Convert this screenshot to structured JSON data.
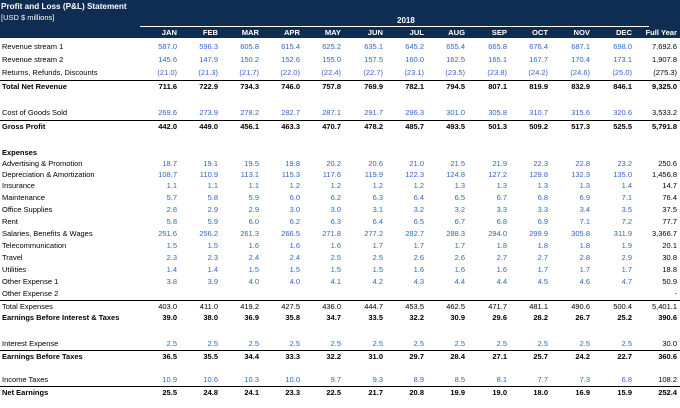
{
  "header": {
    "title": "Profit and Loss (P&L) Statement",
    "subtitle": "[USD $ millions]",
    "year": "2018",
    "months": [
      "JAN",
      "FEB",
      "MAR",
      "APR",
      "MAY",
      "JUN",
      "JUL",
      "AUG",
      "SEP",
      "OCT",
      "NOV",
      "DEC"
    ],
    "full_year_label": "Full Year"
  },
  "rows": [
    {
      "id": "rev1",
      "label": "Revenue stream 1",
      "values": [
        "587.0",
        "596.3",
        "605.8",
        "615.4",
        "625.2",
        "635.1",
        "645.2",
        "655.4",
        "665.8",
        "676.4",
        "687.1",
        "698.0"
      ],
      "fy": "7,692.6"
    },
    {
      "id": "rev2",
      "label": "Revenue stream 2",
      "values": [
        "145.6",
        "147.9",
        "150.2",
        "152.6",
        "155.0",
        "157.5",
        "160.0",
        "162.5",
        "165.1",
        "167.7",
        "170.4",
        "173.1"
      ],
      "fy": "1,907.8"
    },
    {
      "id": "returns",
      "label": "Returns, Refunds, Discounts",
      "values": [
        "(21.0)",
        "(21.3)",
        "(21.7)",
        "(22.0)",
        "(22.4)",
        "(22.7)",
        "(23.1)",
        "(23.5)",
        "(23.8)",
        "(24.2)",
        "(24.6)",
        "(25.0)"
      ],
      "fy": "(275.3)"
    },
    {
      "id": "total_net_revenue",
      "label": "Total Net Revenue",
      "values": [
        "711.6",
        "722.9",
        "734.3",
        "746.0",
        "757.8",
        "769.9",
        "782.1",
        "794.5",
        "807.1",
        "819.9",
        "832.9",
        "846.1"
      ],
      "fy": "9,325.0"
    },
    {
      "id": "cogs",
      "label": "Cost of Goods Sold",
      "values": [
        "269.6",
        "273.9",
        "278.2",
        "282.7",
        "287.1",
        "291.7",
        "296.3",
        "301.0",
        "305.8",
        "310.7",
        "315.6",
        "320.6"
      ],
      "fy": "3,533.2"
    },
    {
      "id": "gross_profit",
      "label": "Gross Profit",
      "values": [
        "442.0",
        "449.0",
        "456.1",
        "463.3",
        "470.7",
        "478.2",
        "485.7",
        "493.5",
        "501.3",
        "509.2",
        "517.3",
        "525.5"
      ],
      "fy": "5,791.8"
    },
    {
      "id": "expenses_header",
      "label": "Expenses",
      "values": [],
      "fy": ""
    },
    {
      "id": "advertising",
      "label": "Advertising & Promotion",
      "values": [
        "18.7",
        "19.1",
        "19.5",
        "19.8",
        "20.2",
        "20.6",
        "21.0",
        "21.5",
        "21.9",
        "22.3",
        "22.8",
        "23.2"
      ],
      "fy": "250.6"
    },
    {
      "id": "depreciation",
      "label": "Depreciation & Amortization",
      "values": [
        "108.7",
        "110.9",
        "113.1",
        "115.3",
        "117.6",
        "119.9",
        "122.3",
        "124.8",
        "127.2",
        "129.8",
        "132.3",
        "135.0"
      ],
      "fy": "1,456.8"
    },
    {
      "id": "insurance",
      "label": "Insurance",
      "values": [
        "1.1",
        "1.1",
        "1.1",
        "1.2",
        "1.2",
        "1.2",
        "1.2",
        "1.3",
        "1.3",
        "1.3",
        "1.3",
        "1.4"
      ],
      "fy": "14.7"
    },
    {
      "id": "maintenance",
      "label": "Maintenance",
      "values": [
        "5.7",
        "5.8",
        "5.9",
        "6.0",
        "6.2",
        "6.3",
        "6.4",
        "6.5",
        "6.7",
        "6.8",
        "6.9",
        "7.1"
      ],
      "fy": "76.4"
    },
    {
      "id": "office_supplies",
      "label": "Office Supplies",
      "values": [
        "2.8",
        "2.9",
        "2.9",
        "3.0",
        "3.0",
        "3.1",
        "3.2",
        "3.2",
        "3.3",
        "3.3",
        "3.4",
        "3.5"
      ],
      "fy": "37.5"
    },
    {
      "id": "rent",
      "label": "Rent",
      "values": [
        "5.8",
        "5.9",
        "6.0",
        "6.2",
        "6.3",
        "6.4",
        "6.5",
        "6.7",
        "6.8",
        "6.9",
        "7.1",
        "7.2"
      ],
      "fy": "77.7"
    },
    {
      "id": "salaries",
      "label": "Salaries, Benefits & Wages",
      "values": [
        "251.6",
        "256.2",
        "261.3",
        "266.5",
        "271.8",
        "277.2",
        "282.7",
        "288.3",
        "294.0",
        "299.9",
        "305.8",
        "311.9"
      ],
      "fy": "3,366.7"
    },
    {
      "id": "telecom",
      "label": "Telecommunication",
      "values": [
        "1.5",
        "1.5",
        "1.6",
        "1.6",
        "1.6",
        "1.7",
        "1.7",
        "1.7",
        "1.8",
        "1.8",
        "1.8",
        "1.9"
      ],
      "fy": "20.1"
    },
    {
      "id": "travel",
      "label": "Travel",
      "values": [
        "2.3",
        "2.3",
        "2.4",
        "2.4",
        "2.5",
        "2.5",
        "2.6",
        "2.6",
        "2.7",
        "2.7",
        "2.8",
        "2.9"
      ],
      "fy": "30.8"
    },
    {
      "id": "utilities",
      "label": "Utilities",
      "values": [
        "1.4",
        "1.4",
        "1.5",
        "1.5",
        "1.5",
        "1.5",
        "1.6",
        "1.6",
        "1.6",
        "1.7",
        "1.7",
        "1.7"
      ],
      "fy": "18.8"
    },
    {
      "id": "other1",
      "label": "Other Expense 1",
      "values": [
        "3.8",
        "3.9",
        "4.0",
        "4.0",
        "4.1",
        "4.2",
        "4.3",
        "4.4",
        "4.4",
        "4.5",
        "4.6",
        "4.7"
      ],
      "fy": "50.9"
    },
    {
      "id": "other2",
      "label": "Other Expense 2",
      "values": [
        "",
        "",
        "",
        "",
        "",
        "",
        "",
        "",
        "",
        "",
        "",
        ""
      ],
      "fy": "-"
    },
    {
      "id": "total_expenses",
      "label": "Total Expenses",
      "values": [
        "403.0",
        "411.0",
        "419.2",
        "427.5",
        "436.0",
        "444.7",
        "453.5",
        "462.5",
        "471.7",
        "481.1",
        "490.6",
        "500.4"
      ],
      "fy": "5,401.1"
    },
    {
      "id": "ebit",
      "label": "Earnings Before Interest & Taxes",
      "values": [
        "39.0",
        "38.0",
        "36.9",
        "35.8",
        "34.7",
        "33.5",
        "32.2",
        "30.9",
        "29.6",
        "28.2",
        "26.7",
        "25.2"
      ],
      "fy": "390.6"
    },
    {
      "id": "interest",
      "label": "Interest Expense",
      "values": [
        "2.5",
        "2.5",
        "2.5",
        "2.5",
        "2.5",
        "2.5",
        "2.5",
        "2.5",
        "2.5",
        "2.5",
        "2.5",
        "2.5"
      ],
      "fy": "30.0"
    },
    {
      "id": "ebt",
      "label": "Earnings Before Taxes",
      "values": [
        "36.5",
        "35.5",
        "34.4",
        "33.3",
        "32.2",
        "31.0",
        "29.7",
        "28.4",
        "27.1",
        "25.7",
        "24.2",
        "22.7"
      ],
      "fy": "360.6"
    },
    {
      "id": "income_taxes",
      "label": "Income Taxes",
      "values": [
        "10.9",
        "10.6",
        "10.3",
        "10.0",
        "9.7",
        "9.3",
        "8.9",
        "8.5",
        "8.1",
        "7.7",
        "7.3",
        "6.8"
      ],
      "fy": "108.2"
    },
    {
      "id": "net_earnings",
      "label": "Net Earnings",
      "values": [
        "25.5",
        "24.8",
        "24.1",
        "23.3",
        "22.5",
        "21.7",
        "20.8",
        "19.9",
        "19.0",
        "18.0",
        "16.9",
        "15.9"
      ],
      "fy": "252.4"
    }
  ],
  "colors": {
    "header_bg": "#0f2c52",
    "input_blue": "#2f66d0"
  }
}
